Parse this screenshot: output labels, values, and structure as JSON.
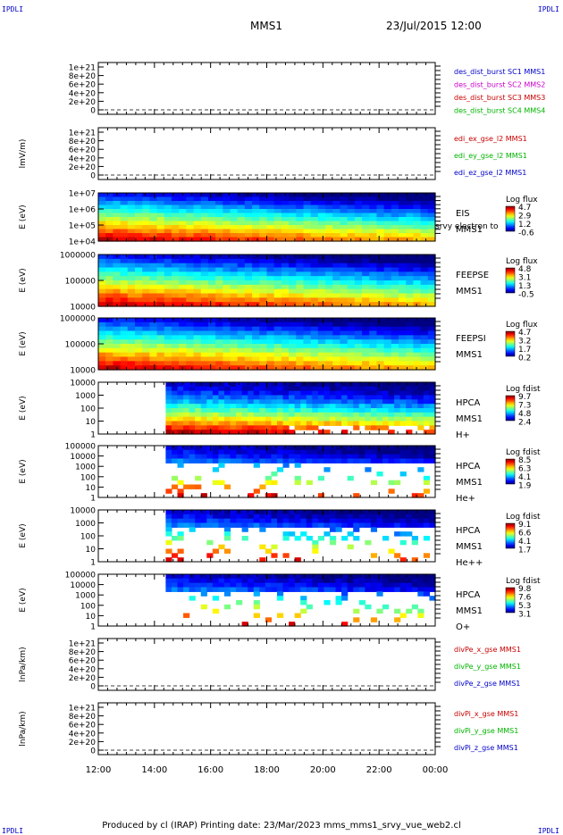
{
  "header": {
    "corner_label": "IPDLI",
    "spacecraft": "MMS1",
    "datetime": "23/Jul/2015 12:00"
  },
  "footer": {
    "text": "Produced by cl (IRAP)   Printing date: 23/Mar/2023   mms_mms1_srvy_vue_web2.cl"
  },
  "time_axis": [
    "12:00",
    "14:00",
    "16:00",
    "18:00",
    "20:00",
    "22:00",
    "00:00"
  ],
  "chart_data": [
    {
      "type": "line",
      "ylabel": "",
      "yticks": [
        "1e+21",
        "8e+20",
        "6e+20",
        "4e+20",
        "2e+20",
        "0"
      ],
      "series": [
        {
          "name": "des_dist_burst SC1 MMS1",
          "color": "#0000c8",
          "values": []
        },
        {
          "name": "des_dist_burst SC2 MMS2",
          "color": "#c800c8",
          "values": []
        },
        {
          "name": "des_dist_burst SC3 MMS3",
          "color": "#c80000",
          "values": []
        },
        {
          "name": "des_dist_burst SC4 MMS4",
          "color": "#00b400",
          "values": []
        }
      ]
    },
    {
      "type": "line",
      "ylabel": "lmV/m)",
      "yticks": [
        "1e+21",
        "8e+20",
        "6e+20",
        "4e+20",
        "2e+20",
        "0"
      ],
      "series": [
        {
          "name": "edi_ex_gse_l2 MMS1",
          "color": "#c80000",
          "values": []
        },
        {
          "name": "edi_ey_gse_l2 MMS1",
          "color": "#00b400",
          "values": []
        },
        {
          "name": "edi_ez_gse_l2 MMS1",
          "color": "#0000c8",
          "values": []
        }
      ]
    },
    {
      "type": "heatmap",
      "ylabel": "E (eV)",
      "yticks": [
        "1e+07",
        "1e+06",
        "1e+05",
        "1e+04"
      ],
      "instrument": [
        "EIS",
        "MMS1"
      ],
      "overlay_text": "srvy electron to",
      "colorbar_title": "Log flux",
      "colorbar_ticks": [
        "4.7",
        "2.9",
        "1.2",
        "-0.6"
      ],
      "time_start_h": 0.0
    },
    {
      "type": "heatmap",
      "ylabel": "E (eV)",
      "yticks": [
        "1000000",
        "100000",
        "10000"
      ],
      "instrument": [
        "FEEPSE",
        "MMS1"
      ],
      "colorbar_title": "Log flux",
      "colorbar_ticks": [
        "4.8",
        "3.1",
        "1.3",
        "-0.5"
      ],
      "time_start_h": 0.0
    },
    {
      "type": "heatmap",
      "ylabel": "E (eV)",
      "yticks": [
        "1000000",
        "100000",
        "10000"
      ],
      "instrument": [
        "FEEPSI",
        "MMS1"
      ],
      "colorbar_title": "Log flux",
      "colorbar_ticks": [
        "4.7",
        "3.2",
        "1.7",
        "0.2"
      ],
      "time_start_h": 0.0
    },
    {
      "type": "heatmap",
      "ylabel": "E (eV)",
      "yticks": [
        "10000",
        "1000",
        "100",
        "10",
        "1"
      ],
      "instrument": [
        "HPCA",
        "MMS1",
        "H+"
      ],
      "colorbar_title": "Log fdist",
      "colorbar_ticks": [
        "9.7",
        "7.3",
        "4.8",
        "2.4"
      ],
      "time_start_h": 2.4
    },
    {
      "type": "heatmap",
      "ylabel": "E (eV)",
      "yticks": [
        "100000",
        "10000",
        "1000",
        "100",
        "10",
        "1"
      ],
      "instrument": [
        "HPCA",
        "MMS1",
        "He+"
      ],
      "colorbar_title": "Log fdist",
      "colorbar_ticks": [
        "8.5",
        "6.3",
        "4.1",
        "1.9"
      ],
      "time_start_h": 2.4
    },
    {
      "type": "heatmap",
      "ylabel": "E (eV)",
      "yticks": [
        "10000",
        "1000",
        "100",
        "10",
        "1"
      ],
      "instrument": [
        "HPCA",
        "MMS1",
        "He++"
      ],
      "colorbar_title": "Log fdist",
      "colorbar_ticks": [
        "9.1",
        "6.6",
        "4.1",
        "1.7"
      ],
      "time_start_h": 2.4
    },
    {
      "type": "heatmap",
      "ylabel": "E (eV)",
      "yticks": [
        "100000",
        "10000",
        "1000",
        "100",
        "10",
        "1"
      ],
      "instrument": [
        "HPCA",
        "MMS1",
        "O+"
      ],
      "colorbar_title": "Log fdist",
      "colorbar_ticks": [
        "9.8",
        "7.6",
        "5.3",
        "3.1"
      ],
      "time_start_h": 2.4
    },
    {
      "type": "line",
      "ylabel": "lnPa/km)",
      "yticks": [
        "1e+21",
        "8e+20",
        "6e+20",
        "4e+20",
        "2e+20",
        "0"
      ],
      "series": [
        {
          "name": "divPe_x_gse MMS1",
          "color": "#c80000",
          "values": []
        },
        {
          "name": "divPe_y_gse MMS1",
          "color": "#00b400",
          "values": []
        },
        {
          "name": "divPe_z_gse MMS1",
          "color": "#0000c8",
          "values": []
        }
      ]
    },
    {
      "type": "line",
      "ylabel": "lnPa/km)",
      "yticks": [
        "1e+21",
        "8e+20",
        "6e+20",
        "4e+20",
        "2e+20",
        "0"
      ],
      "series": [
        {
          "name": "divPi_x_gse MMS1",
          "color": "#c80000",
          "values": []
        },
        {
          "name": "divPi_y_gse MMS1",
          "color": "#00b400",
          "values": []
        },
        {
          "name": "divPi_z_gse MMS1",
          "color": "#0000c8",
          "values": []
        }
      ]
    }
  ]
}
